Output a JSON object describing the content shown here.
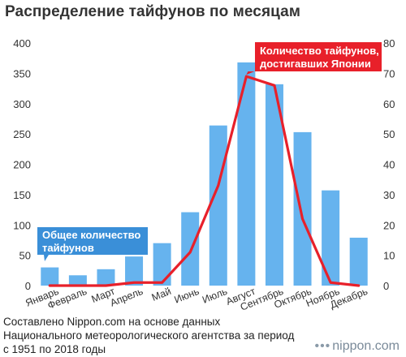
{
  "title": "Распределение тайфунов по месяцам",
  "chart_data": {
    "type": "bar+line",
    "categories": [
      "Январь",
      "Февраль",
      "Март",
      "Апрель",
      "Май",
      "Июнь",
      "Июль",
      "Август",
      "Сентябрь",
      "Октябрь",
      "Ноябрь",
      "Декабрь"
    ],
    "series": [
      {
        "name": "Общее количество тайфунов",
        "type": "bar",
        "axis": "left",
        "values": [
          30,
          17,
          27,
          48,
          70,
          121,
          264,
          368,
          332,
          253,
          157,
          79
        ]
      },
      {
        "name": "Количество тайфунов, достигавших Японии",
        "type": "line",
        "axis": "right",
        "values": [
          0,
          0,
          0,
          1,
          1,
          11,
          33,
          69,
          66,
          22,
          1,
          0
        ]
      }
    ],
    "y_left": {
      "min": 0,
      "max": 400,
      "ticks": [
        "0",
        "50",
        "100",
        "150",
        "200",
        "250",
        "300",
        "350",
        "400"
      ]
    },
    "y_right": {
      "min": 0,
      "max": 80,
      "ticks": [
        "0",
        "10",
        "20",
        "30",
        "40",
        "50",
        "60",
        "70",
        "80"
      ]
    },
    "callouts": {
      "bars": [
        "Общее количество",
        "тайфунов"
      ],
      "line": [
        "Количество тайфунов,",
        "достигавших Японии"
      ]
    },
    "colors": {
      "bar": "#66b3ee",
      "line": "#e8202a",
      "bar_callout": "#3a8fd8",
      "line_callout": "#e8202a"
    },
    "grid": false
  },
  "source_lines": [
    "Составлено Nippon.com на основе данных",
    "Национального метеорологического агентства за период",
    "с 1951 по 2018 годы"
  ],
  "brand": {
    "dots": "•••",
    "name": "nippon.com"
  }
}
